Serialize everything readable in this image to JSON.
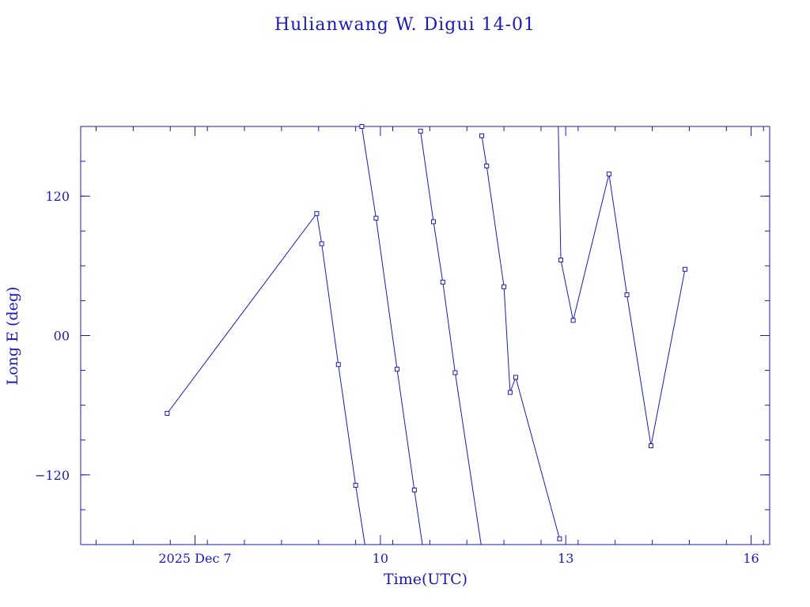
{
  "chart_data": {
    "type": "line",
    "title": "Hulianwang W. Digui 14-01",
    "xlabel": "Time(UTC)",
    "ylabel": "Long E (deg)",
    "color": "#1a1ab5",
    "x_unit": "days of Dec 2025",
    "xlim": [
      5.15,
      16.3
    ],
    "ylim": [
      -180,
      180
    ],
    "x_ticks": [
      {
        "value": 7,
        "label": "2025 Dec  7"
      },
      {
        "value": 10,
        "label": "10"
      },
      {
        "value": 13,
        "label": "13"
      },
      {
        "value": 16,
        "label": "16"
      }
    ],
    "y_ticks": [
      {
        "value": 120,
        "label": "120"
      },
      {
        "value": 0,
        "label": "00"
      },
      {
        "value": -120,
        "label": "−120"
      }
    ],
    "x_minor_step": 0.6,
    "y_minor_step": 30,
    "series": [
      {
        "marker": "square",
        "points": [
          [
            6.55,
            -67
          ],
          [
            8.97,
            105
          ],
          [
            9.05,
            79
          ],
          [
            9.32,
            -25
          ],
          [
            9.6,
            -129
          ],
          [
            9.75,
            -180
          ],
          [
            9.7,
            180
          ],
          [
            9.93,
            101
          ],
          [
            10.27,
            -29
          ],
          [
            10.55,
            -133
          ],
          [
            10.68,
            -180
          ],
          [
            10.65,
            176
          ],
          [
            10.86,
            98
          ],
          [
            11.01,
            46
          ],
          [
            11.21,
            -32
          ],
          [
            11.63,
            -180
          ],
          [
            11.64,
            172
          ],
          [
            11.72,
            146
          ],
          [
            12.0,
            42
          ],
          [
            12.1,
            -49
          ],
          [
            12.19,
            -36
          ],
          [
            12.9,
            -175
          ]
        ],
        "marked": [
          true,
          true,
          true,
          true,
          true,
          false,
          true,
          true,
          true,
          true,
          false,
          true,
          true,
          true,
          true,
          false,
          true,
          true,
          true,
          true,
          true,
          true
        ]
      },
      {
        "marker": "square",
        "points": [
          [
            12.88,
            180
          ],
          [
            12.92,
            65
          ],
          [
            13.12,
            13
          ],
          [
            13.7,
            139
          ],
          [
            13.99,
            35
          ],
          [
            14.38,
            -95
          ],
          [
            14.93,
            57
          ]
        ],
        "marked": [
          false,
          true,
          true,
          true,
          true,
          true,
          true
        ]
      }
    ]
  }
}
